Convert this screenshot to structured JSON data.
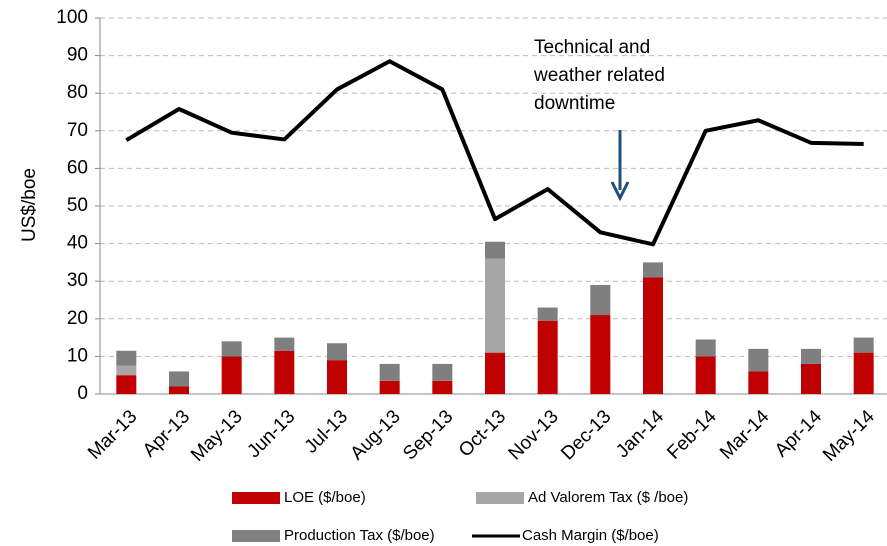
{
  "chart_data": {
    "type": "bar_line",
    "categories": [
      "Mar-13",
      "Apr-13",
      "May-13",
      "Jun-13",
      "Jul-13",
      "Aug-13",
      "Sep-13",
      "Oct-13",
      "Nov-13",
      "Dec-13",
      "Jan-14",
      "Feb-14",
      "Mar-14",
      "Apr-14",
      "May-14"
    ],
    "y_label": "US$/boe",
    "ylim": [
      0,
      100
    ],
    "yticks": [
      0,
      10,
      20,
      30,
      40,
      50,
      60,
      70,
      80,
      90,
      100
    ],
    "grid": true,
    "annotation": [
      "Technical and",
      "weather related",
      "downtime"
    ],
    "series": [
      {
        "name": "LOE ($/boe)",
        "type": "bar",
        "color": "#c00000",
        "values": [
          5,
          2,
          10,
          11.5,
          9,
          3.5,
          3.5,
          11,
          19.5,
          21,
          31,
          10,
          6,
          8,
          11
        ]
      },
      {
        "name": "Ad Valorem Tax ($ /boe)",
        "type": "bar",
        "color": "#a6a6a6",
        "values": [
          2.5,
          0,
          0,
          0,
          0,
          0,
          0,
          25,
          0,
          0,
          0,
          0,
          0,
          0,
          0
        ]
      },
      {
        "name": "Production Tax ($/boe)",
        "type": "bar",
        "color": "#7f7f7f",
        "values": [
          4,
          4,
          4,
          3.5,
          4.5,
          4.5,
          4.5,
          4.5,
          3.5,
          8,
          4,
          4.5,
          6,
          4,
          4
        ]
      },
      {
        "name": "Cash Margin ($/boe)",
        "type": "line",
        "color": "#000000",
        "values": [
          67.5,
          75.8,
          69.5,
          67.7,
          81,
          88.5,
          81,
          46.5,
          54.5,
          43,
          39.8,
          70,
          72.8,
          66.8,
          66.5
        ]
      }
    ]
  }
}
